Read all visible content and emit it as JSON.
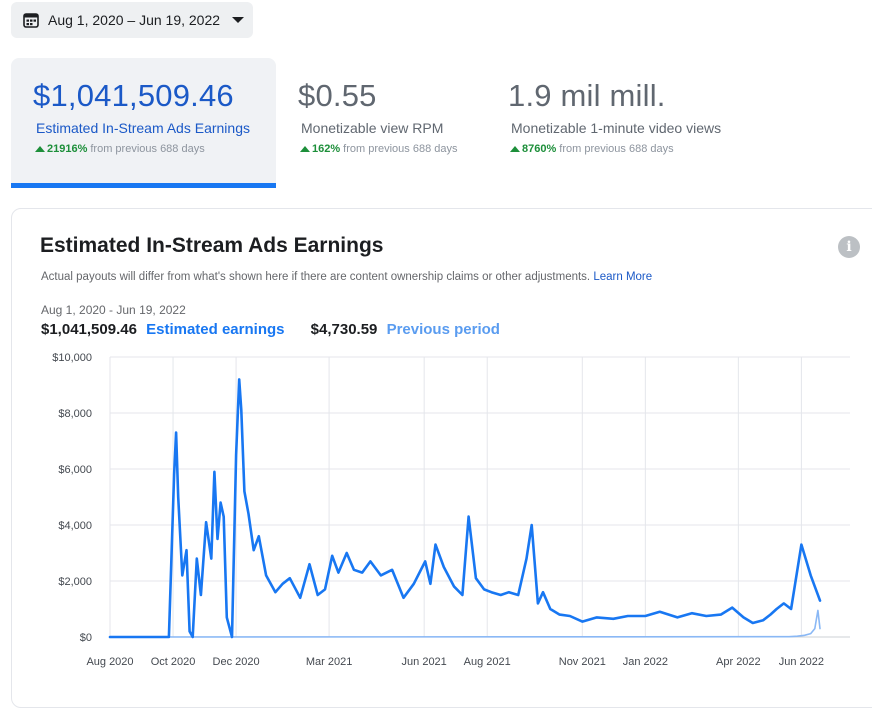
{
  "date_filter": {
    "label": "Aug 1, 2020 – Jun 19, 2022",
    "icon": "calendar-icon"
  },
  "metrics": [
    {
      "value": "$1,041,509.46",
      "label": "Estimated In-Stream Ads Earnings",
      "delta": "21916%",
      "delta_suffix": "from previous 688 days"
    },
    {
      "value": "$0.55",
      "label": "Monetizable view RPM",
      "delta": "162%",
      "delta_suffix": "from previous 688 days"
    },
    {
      "value": "1.9 mil mill.",
      "label": "Monetizable 1-minute video views",
      "delta": "8760%",
      "delta_suffix": "from previous 688 days"
    }
  ],
  "card": {
    "title": "Estimated In-Stream Ads Earnings",
    "note": "Actual payouts will differ from what's shown here if there are content ownership claims or other adjustments.",
    "learn_more": "Learn More",
    "range": "Aug 1, 2020 - Jun 19, 2022",
    "total_current": "$1,041,509.46",
    "current_label": "Estimated earnings",
    "total_previous": "$4,730.59",
    "previous_label": "Previous period"
  },
  "chart_data": {
    "type": "line",
    "x_ticks": [
      "Aug 2020",
      "Oct 2020",
      "Dec 2020",
      "Mar 2021",
      "Jun 2021",
      "Aug 2021",
      "Nov 2021",
      "Jan 2022",
      "Apr 2022",
      "Jun 2022"
    ],
    "y_ticks": [
      "$0",
      "$2,000",
      "$4,000",
      "$6,000",
      "$8,000",
      "$10,000"
    ],
    "ylim": [
      0,
      10000
    ],
    "colors": {
      "current": "#1877f2",
      "previous": "#8ab8f5"
    },
    "series": [
      {
        "name": "Estimated earnings",
        "x": [
          "2020-08-01",
          "2020-09-20",
          "2020-09-27",
          "2020-10-02",
          "2020-10-04",
          "2020-10-06",
          "2020-10-10",
          "2020-10-14",
          "2020-10-17",
          "2020-10-20",
          "2020-10-24",
          "2020-10-28",
          "2020-11-02",
          "2020-11-07",
          "2020-11-10",
          "2020-11-13",
          "2020-11-16",
          "2020-11-19",
          "2020-11-22",
          "2020-11-27",
          "2020-12-01",
          "2020-12-04",
          "2020-12-06",
          "2020-12-09",
          "2020-12-13",
          "2020-12-18",
          "2020-12-23",
          "2020-12-30",
          "2021-01-08",
          "2021-01-15",
          "2021-01-22",
          "2021-02-01",
          "2021-02-10",
          "2021-02-18",
          "2021-02-25",
          "2021-03-04",
          "2021-03-10",
          "2021-03-18",
          "2021-03-25",
          "2021-04-02",
          "2021-04-10",
          "2021-04-20",
          "2021-05-01",
          "2021-05-12",
          "2021-05-22",
          "2021-06-02",
          "2021-06-07",
          "2021-06-12",
          "2021-06-20",
          "2021-06-30",
          "2021-07-08",
          "2021-07-14",
          "2021-07-21",
          "2021-07-29",
          "2021-08-05",
          "2021-08-14",
          "2021-08-22",
          "2021-08-31",
          "2021-09-08",
          "2021-09-13",
          "2021-09-19",
          "2021-09-24",
          "2021-10-01",
          "2021-10-10",
          "2021-10-20",
          "2021-11-01",
          "2021-11-15",
          "2021-12-01",
          "2021-12-15",
          "2022-01-01",
          "2022-01-15",
          "2022-02-01",
          "2022-02-15",
          "2022-03-01",
          "2022-03-15",
          "2022-03-26",
          "2022-04-06",
          "2022-04-15",
          "2022-04-25",
          "2022-05-02",
          "2022-05-08",
          "2022-05-15",
          "2022-05-22",
          "2022-06-01",
          "2022-06-10",
          "2022-06-19"
        ],
        "values": [
          0,
          0,
          0,
          5800,
          7300,
          5000,
          2200,
          3100,
          200,
          0,
          2800,
          1500,
          4100,
          2800,
          5900,
          3500,
          4800,
          4300,
          700,
          0,
          6500,
          9200,
          8100,
          5200,
          4400,
          3100,
          3600,
          2200,
          1600,
          1900,
          2100,
          1400,
          2600,
          1500,
          1700,
          2900,
          2300,
          3000,
          2400,
          2300,
          2700,
          2200,
          2400,
          1400,
          1900,
          2700,
          1900,
          3300,
          2500,
          1800,
          1500,
          4300,
          2100,
          1700,
          1600,
          1500,
          1600,
          1500,
          2800,
          4000,
          1200,
          1600,
          1000,
          800,
          750,
          550,
          700,
          650,
          750,
          750,
          900,
          700,
          850,
          750,
          800,
          1050,
          700,
          500,
          600,
          800,
          1000,
          1200,
          1000,
          3300,
          2200,
          1300
        ]
      },
      {
        "name": "Previous period",
        "x": [
          "2020-08-01",
          "2022-05-20",
          "2022-05-28",
          "2022-06-04",
          "2022-06-10",
          "2022-06-14",
          "2022-06-17",
          "2022-06-19"
        ],
        "values": [
          0,
          10,
          30,
          60,
          120,
          300,
          950,
          300
        ]
      }
    ]
  }
}
